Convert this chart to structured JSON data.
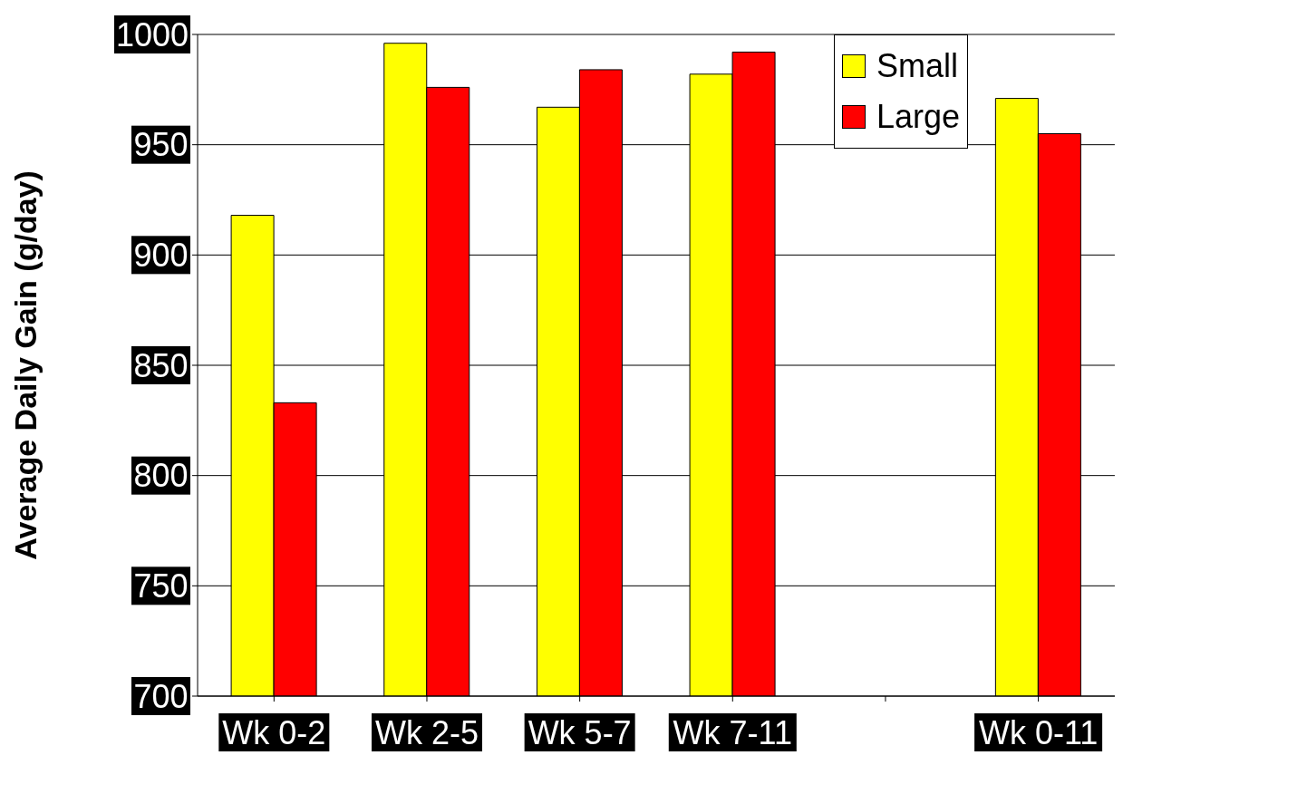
{
  "chart_data": {
    "type": "bar",
    "ylabel": "Average Daily Gain (g/day)",
    "categories": [
      "Wk 0-2",
      "Wk 2-5",
      "Wk 5-7",
      "Wk 7-11",
      null,
      "Wk 0-11"
    ],
    "series": [
      {
        "name": "Small",
        "color": "#ffff00",
        "values": [
          918,
          996,
          967,
          982,
          null,
          971
        ]
      },
      {
        "name": "Large",
        "color": "#ff0000",
        "values": [
          833,
          976,
          984,
          992,
          null,
          955
        ]
      }
    ],
    "ylim": [
      700,
      1000
    ],
    "yticks": [
      700,
      750,
      800,
      850,
      900,
      950,
      1000
    ],
    "grid": "y",
    "legend": "top right"
  }
}
